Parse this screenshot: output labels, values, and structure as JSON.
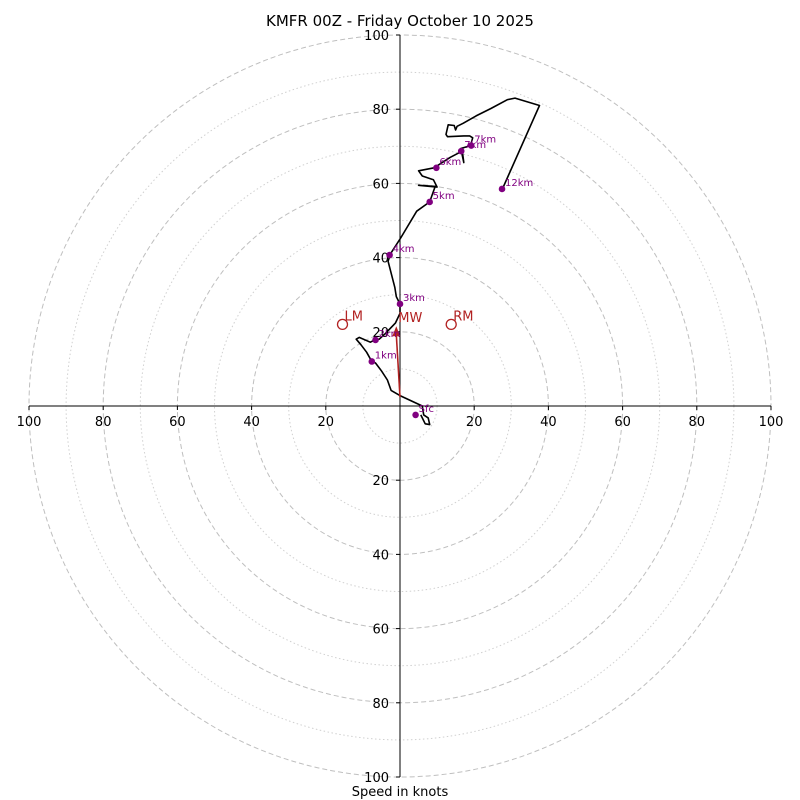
{
  "chart_data": {
    "type": "hodograph",
    "title": "KMFR 00Z - Friday October 10 2025",
    "xlabel": "Speed in knots",
    "max_speed": 100,
    "major_rings": [
      20,
      40,
      60,
      80,
      100
    ],
    "minor_rings": [
      10,
      30,
      50,
      70,
      90
    ],
    "tick_labels": [
      "20",
      "40",
      "60",
      "80",
      "100"
    ],
    "colors": {
      "trace": "#000000",
      "height_marker": "#800080",
      "storm_motion": "#b22222",
      "major_ring": "#bfbfbf",
      "minor_ring": "#d0d0d0",
      "axis": "#000000"
    },
    "trace": [
      [
        5.6,
        -2.4
      ],
      [
        6.8,
        -4.8
      ],
      [
        8,
        -5
      ],
      [
        7.6,
        -3.2
      ],
      [
        6.4,
        -2.4
      ],
      [
        6,
        0
      ],
      [
        0,
        2.8
      ],
      [
        -2.4,
        4.2
      ],
      [
        -3.4,
        7
      ],
      [
        -5,
        9.5
      ],
      [
        -6.6,
        11.6
      ],
      [
        -7.6,
        12
      ],
      [
        -9,
        14.5
      ],
      [
        -10.5,
        16.5
      ],
      [
        -11.8,
        18
      ],
      [
        -11,
        18.5
      ],
      [
        -8,
        17.2
      ],
      [
        -6.8,
        17.8
      ],
      [
        -5.6,
        18
      ],
      [
        -4,
        19.5
      ],
      [
        -1.2,
        22.4
      ],
      [
        0,
        25
      ],
      [
        0,
        27.5
      ],
      [
        -1,
        29.5
      ],
      [
        -1.4,
        32
      ],
      [
        -3.2,
        39
      ],
      [
        -2.6,
        41
      ],
      [
        0,
        45
      ],
      [
        4.5,
        52.5
      ],
      [
        8,
        55
      ],
      [
        9.5,
        59.2
      ],
      [
        5,
        59.5
      ],
      [
        10,
        59
      ],
      [
        9,
        61
      ],
      [
        6,
        62
      ],
      [
        5,
        63.4
      ],
      [
        9.2,
        64.2
      ],
      [
        13.5,
        67
      ],
      [
        16.8,
        68.7
      ],
      [
        17.2,
        65.6
      ],
      [
        16.4,
        69.4
      ],
      [
        19,
        70.2
      ],
      [
        19.6,
        72.3
      ],
      [
        18.8,
        72.8
      ],
      [
        17.2,
        72.8
      ],
      [
        12.8,
        72.6
      ],
      [
        12.4,
        73.2
      ],
      [
        13,
        75.8
      ],
      [
        14.6,
        75.6
      ],
      [
        15,
        74.4
      ],
      [
        15.4,
        75.4
      ],
      [
        17,
        76.2
      ],
      [
        20.5,
        78.2
      ],
      [
        24.5,
        80.2
      ],
      [
        29,
        82.6
      ],
      [
        31,
        83
      ],
      [
        37.6,
        81
      ],
      [
        27.6,
        58.5
      ]
    ],
    "height_markers": [
      {
        "label": "Sfc",
        "u": 4.2,
        "v": -2.4
      },
      {
        "label": "1km",
        "u": -7.6,
        "v": 12
      },
      {
        "label": "2km",
        "u": -6.6,
        "v": 17.8
      },
      {
        "label": "3km",
        "u": 0,
        "v": 27.5
      },
      {
        "label": "4km",
        "u": -2.8,
        "v": 40.7
      },
      {
        "label": "5km",
        "u": 8,
        "v": 55
      },
      {
        "label": "6km",
        "u": 9.8,
        "v": 64.2
      },
      {
        "label": "7km",
        "u": 16.5,
        "v": 68.7
      },
      {
        "label": "7km",
        "u": 19.2,
        "v": 70.2
      },
      {
        "label": "12km",
        "u": 27.5,
        "v": 58.5
      }
    ],
    "storm_motion": [
      {
        "label": "LM",
        "u": -15.5,
        "v": 22,
        "marker": "open-circle"
      },
      {
        "label": "MW",
        "u": -1,
        "v": 21.5,
        "marker": "arrow"
      },
      {
        "label": "RM",
        "u": 13.8,
        "v": 22,
        "marker": "open-circle"
      }
    ],
    "mean_wind_arrow": {
      "from_u": 0,
      "from_v": 2.4,
      "to_u": -1,
      "to_v": 21.5
    }
  }
}
